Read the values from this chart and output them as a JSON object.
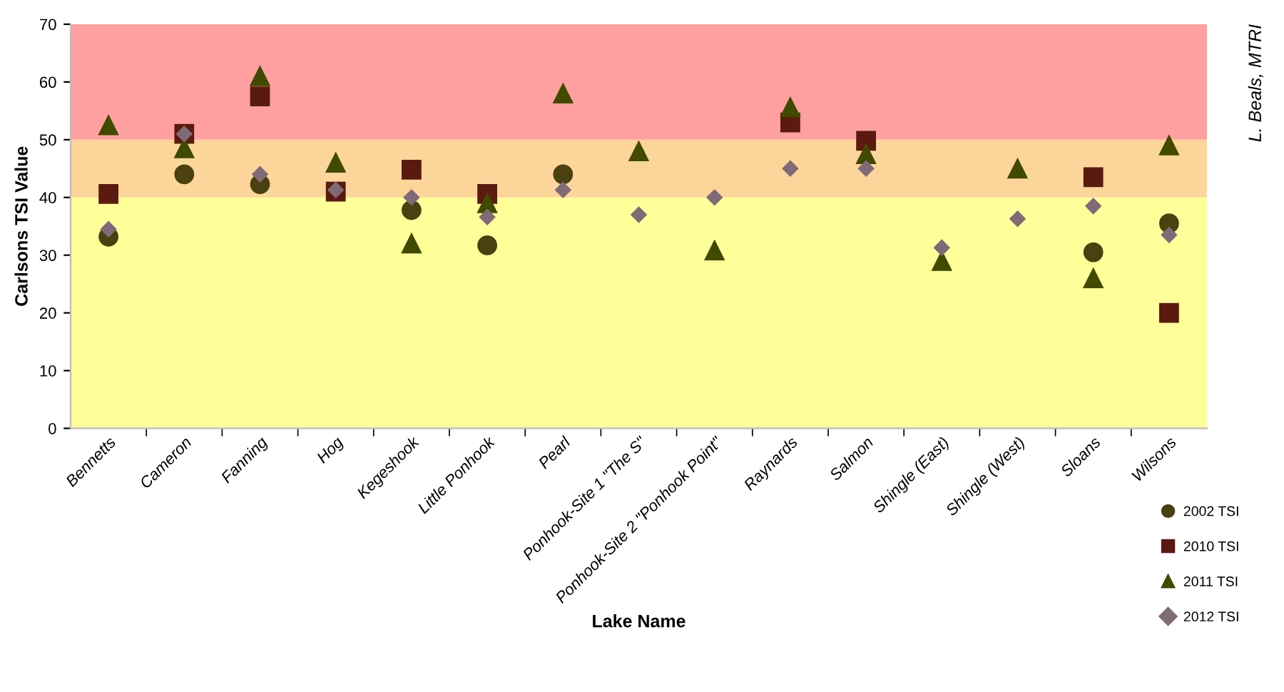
{
  "chart_data": {
    "type": "scatter",
    "xlabel": "Lake Name",
    "ylabel": "Carlsons TSI Value",
    "categories": [
      "Bennetts",
      "Cameron",
      "Fanning",
      "Hog",
      "Kegeshook",
      "Little Ponhook",
      "Pearl",
      "Ponhook-Site 1 \"The S\"",
      "Ponhook-Site 2 \"Ponhook Point\"",
      "Raynards",
      "Salmon",
      "Shingle (East)",
      "Shingle (West)",
      "Sloans",
      "Wilsons"
    ],
    "series": [
      {
        "name": "2002 TSI",
        "color": "#4a4010",
        "marker": "circle",
        "values": [
          33.2,
          44,
          42.3,
          null,
          37.8,
          31.7,
          44,
          null,
          null,
          null,
          null,
          null,
          null,
          30.5,
          35.5
        ]
      },
      {
        "name": "2010 TSI",
        "color": "#5a1a10",
        "marker": "square",
        "values": [
          40.6,
          51,
          57.5,
          41,
          44.8,
          40.6,
          null,
          null,
          null,
          53,
          49.8,
          null,
          null,
          43.5,
          20
        ]
      },
      {
        "name": "2011 TSI",
        "color": "#404a00",
        "marker": "triangle",
        "values": [
          52.5,
          48.5,
          61,
          46,
          32,
          39,
          58,
          48,
          30.8,
          55.6,
          47.5,
          29,
          45,
          26,
          49
        ]
      },
      {
        "name": "2012 TSI",
        "color": "#806a78",
        "marker": "diamond",
        "values": [
          34.5,
          51,
          44,
          41.3,
          40,
          36.6,
          41.3,
          37,
          40,
          45,
          45,
          31.3,
          36.3,
          38.5,
          33.5
        ]
      }
    ],
    "bands": [
      {
        "axis": "y",
        "from": 0,
        "to": 40,
        "color": "#ffff99"
      },
      {
        "axis": "y",
        "from": 40,
        "to": 50,
        "color": "#fcd59a"
      },
      {
        "axis": "y",
        "from": 50,
        "to": 70,
        "color": "#ffa0a0"
      }
    ],
    "ylim": [
      0,
      70
    ],
    "yticks": [
      0,
      10,
      20,
      30,
      40,
      50,
      60,
      70
    ],
    "grid": false,
    "legend": "bottom right",
    "annotations": [
      "L. Beals, MTRI"
    ]
  }
}
